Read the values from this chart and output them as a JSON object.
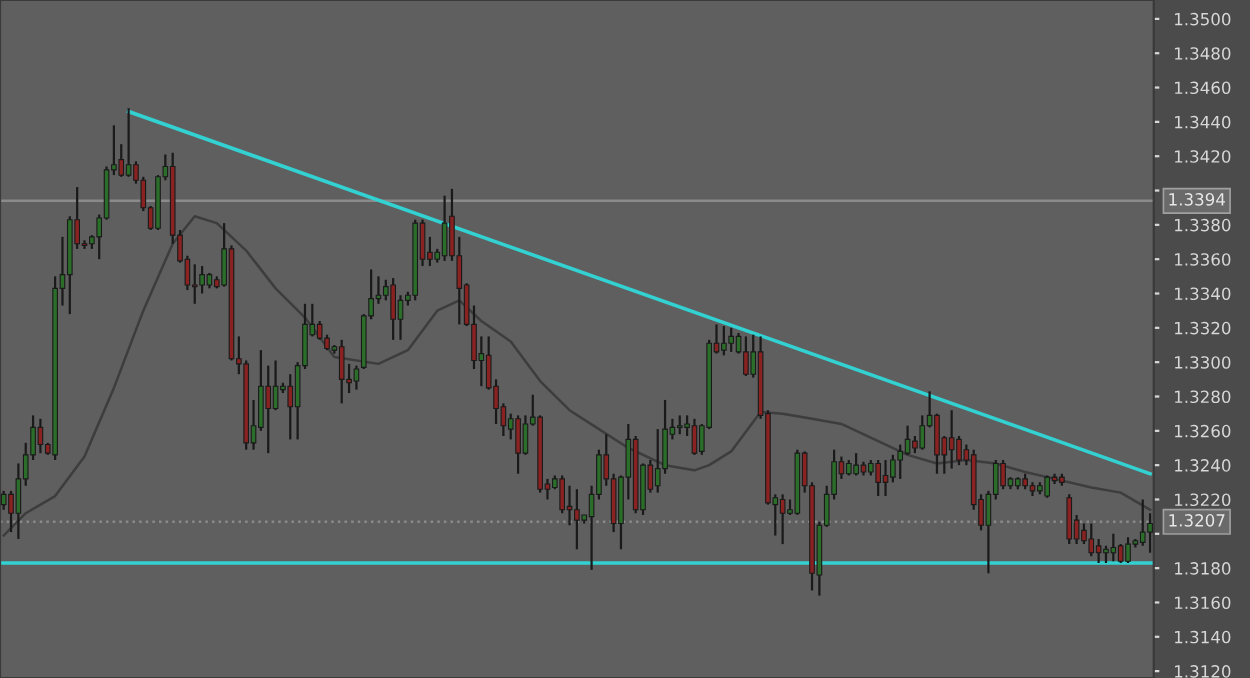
{
  "chart_data": {
    "type": "candlestick",
    "categories": [
      null,
      null,
      null,
      null,
      null,
      null,
      null,
      null,
      null,
      null,
      null,
      null,
      null,
      null,
      null,
      null,
      null,
      null,
      null,
      null,
      null,
      null,
      null,
      null,
      null,
      null,
      null,
      null,
      null,
      null,
      null,
      null,
      null,
      null,
      null,
      null,
      null,
      null,
      null,
      null,
      null,
      null,
      null,
      null,
      null,
      null,
      null,
      null,
      null,
      null,
      null,
      null,
      null,
      null,
      null,
      null,
      null,
      null,
      null,
      null,
      null,
      null,
      null,
      null,
      null,
      null,
      null,
      null,
      null,
      null,
      null,
      null,
      null,
      null,
      null,
      null,
      null,
      null,
      null,
      null,
      null,
      null,
      null,
      null,
      null,
      null,
      null,
      null,
      null,
      null,
      null,
      null,
      null,
      null,
      null,
      null,
      null,
      null,
      null,
      null,
      null,
      null,
      null,
      null,
      null,
      null,
      null,
      null,
      null,
      null,
      null,
      null,
      null,
      null,
      null,
      null,
      null,
      null,
      null,
      null,
      null,
      null,
      null,
      null,
      null,
      null,
      null,
      null,
      null,
      null,
      null,
      null,
      null,
      null,
      null,
      null,
      null,
      null,
      null,
      null,
      null,
      null,
      null,
      null,
      null,
      null,
      null,
      null,
      null,
      null,
      null,
      null,
      null,
      null,
      null,
      null,
      null
    ],
    "ohlc": [
      [
        1.3217,
        1.3225,
        1.3214,
        1.3223
      ],
      [
        1.3223,
        1.3225,
        1.3201,
        1.3212
      ],
      [
        1.3212,
        1.3241,
        1.3197,
        1.3232
      ],
      [
        1.3232,
        1.3253,
        1.3228,
        1.3246
      ],
      [
        1.3246,
        1.3269,
        1.3243,
        1.3262
      ],
      [
        1.3262,
        1.3267,
        1.3247,
        1.3252
      ],
      [
        1.3252,
        1.3253,
        1.3246,
        1.3247
      ],
      [
        1.3246,
        1.335,
        1.3243,
        1.3343
      ],
      [
        1.3343,
        1.3373,
        1.3333,
        1.3351
      ],
      [
        1.3351,
        1.3385,
        1.3328,
        1.3383
      ],
      [
        1.3383,
        1.3402,
        1.3366,
        1.3369
      ],
      [
        1.3369,
        1.3371,
        1.3366,
        1.3368
      ],
      [
        1.3369,
        1.3374,
        1.3366,
        1.3373
      ],
      [
        1.3373,
        1.3386,
        1.336,
        1.3384
      ],
      [
        1.3384,
        1.3414,
        1.3383,
        1.3412
      ],
      [
        1.3412,
        1.3438,
        1.3409,
        1.3415
      ],
      [
        1.3418,
        1.3427,
        1.3408,
        1.3409
      ],
      [
        1.3409,
        1.3448,
        1.3408,
        1.3415
      ],
      [
        1.3415,
        1.3417,
        1.3404,
        1.3406
      ],
      [
        1.3406,
        1.3408,
        1.3388,
        1.339
      ],
      [
        1.339,
        1.3391,
        1.3377,
        1.3378
      ],
      [
        1.3378,
        1.3409,
        1.3377,
        1.3408
      ],
      [
        1.3408,
        1.3421,
        1.3406,
        1.3414
      ],
      [
        1.3414,
        1.3422,
        1.3369,
        1.3374
      ],
      [
        1.3374,
        1.3377,
        1.3358,
        1.3359
      ],
      [
        1.336,
        1.3362,
        1.3342,
        1.3345
      ],
      [
        1.3345,
        1.3357,
        1.3334,
        1.3344
      ],
      [
        1.3345,
        1.3356,
        1.334,
        1.3351
      ],
      [
        1.3345,
        1.3352,
        1.3343,
        1.3351
      ],
      [
        1.3348,
        1.335,
        1.3343,
        1.3344
      ],
      [
        1.3345,
        1.3381,
        1.3344,
        1.3366
      ],
      [
        1.3366,
        1.3368,
        1.3301,
        1.3302
      ],
      [
        1.3302,
        1.3315,
        1.3293,
        1.3299
      ],
      [
        1.3299,
        1.3301,
        1.3249,
        1.3253
      ],
      [
        1.3253,
        1.3278,
        1.3249,
        1.3263
      ],
      [
        1.3262,
        1.3307,
        1.326,
        1.3286
      ],
      [
        1.3286,
        1.3298,
        1.3247,
        1.3273
      ],
      [
        1.3273,
        1.3301,
        1.3272,
        1.3286
      ],
      [
        1.3284,
        1.3288,
        1.3282,
        1.3286
      ],
      [
        1.3286,
        1.3293,
        1.3255,
        1.3274
      ],
      [
        1.3274,
        1.33,
        1.3255,
        1.3298
      ],
      [
        1.3298,
        1.3334,
        1.3296,
        1.3322
      ],
      [
        1.3316,
        1.3334,
        1.3315,
        1.3322
      ],
      [
        1.3322,
        1.3324,
        1.3313,
        1.3314
      ],
      [
        1.3314,
        1.3316,
        1.3307,
        1.3308
      ],
      [
        1.3307,
        1.331,
        1.3305,
        1.3309
      ],
      [
        1.3309,
        1.3313,
        1.3276,
        1.329
      ],
      [
        1.329,
        1.3299,
        1.3282,
        1.3288
      ],
      [
        1.3289,
        1.3298,
        1.3284,
        1.3296
      ],
      [
        1.3297,
        1.3328,
        1.3296,
        1.3327
      ],
      [
        1.3327,
        1.3354,
        1.3325,
        1.3337
      ],
      [
        1.3337,
        1.335,
        1.3334,
        1.3339
      ],
      [
        1.3339,
        1.3348,
        1.3336,
        1.3344
      ],
      [
        1.3345,
        1.3349,
        1.3313,
        1.3325
      ],
      [
        1.3325,
        1.3339,
        1.3313,
        1.3336
      ],
      [
        1.3336,
        1.3341,
        1.3333,
        1.3339
      ],
      [
        1.3339,
        1.3383,
        1.3336,
        1.3381
      ],
      [
        1.3381,
        1.3383,
        1.3356,
        1.336
      ],
      [
        1.3364,
        1.3373,
        1.3356,
        1.336
      ],
      [
        1.336,
        1.3366,
        1.3358,
        1.3364
      ],
      [
        1.3362,
        1.3397,
        1.3359,
        1.3381
      ],
      [
        1.3385,
        1.3401,
        1.3359,
        1.3362
      ],
      [
        1.3362,
        1.3373,
        1.3322,
        1.3343
      ],
      [
        1.3345,
        1.3346,
        1.3321,
        1.3322
      ],
      [
        1.3322,
        1.3333,
        1.3296,
        1.3301
      ],
      [
        1.3301,
        1.3315,
        1.3286,
        1.3305
      ],
      [
        1.3304,
        1.3315,
        1.3284,
        1.3285
      ],
      [
        1.3286,
        1.329,
        1.3264,
        1.3273
      ],
      [
        1.3274,
        1.3276,
        1.3257,
        1.3263
      ],
      [
        1.3261,
        1.327,
        1.3255,
        1.3267
      ],
      [
        1.3267,
        1.3269,
        1.3235,
        1.3247
      ],
      [
        1.3247,
        1.3269,
        1.3246,
        1.3264
      ],
      [
        1.3264,
        1.3281,
        1.3263,
        1.3268
      ],
      [
        1.3268,
        1.3269,
        1.3224,
        1.3226
      ],
      [
        1.3229,
        1.3232,
        1.322,
        1.3226
      ],
      [
        1.3227,
        1.3234,
        1.3226,
        1.3232
      ],
      [
        1.3232,
        1.3234,
        1.3212,
        1.3214
      ],
      [
        1.3216,
        1.3228,
        1.3205,
        1.3214
      ],
      [
        1.3214,
        1.3226,
        1.3191,
        1.3208
      ],
      [
        1.3208,
        1.3211,
        1.3206,
        1.3211
      ],
      [
        1.321,
        1.3228,
        1.3179,
        1.3223
      ],
      [
        1.3223,
        1.3249,
        1.322,
        1.3246
      ],
      [
        1.3246,
        1.3258,
        1.3228,
        1.3232
      ],
      [
        1.3232,
        1.3235,
        1.3201,
        1.3206
      ],
      [
        1.3206,
        1.3234,
        1.3191,
        1.3233
      ],
      [
        1.3233,
        1.3264,
        1.322,
        1.3255
      ],
      [
        1.3255,
        1.3257,
        1.3212,
        1.3214
      ],
      [
        1.3214,
        1.3241,
        1.3211,
        1.324
      ],
      [
        1.324,
        1.3243,
        1.3224,
        1.3226
      ],
      [
        1.3228,
        1.3261,
        1.3224,
        1.3238
      ],
      [
        1.3238,
        1.3278,
        1.3235,
        1.3261
      ],
      [
        1.3258,
        1.3267,
        1.3255,
        1.3262
      ],
      [
        1.3262,
        1.3269,
        1.3258,
        1.3263
      ],
      [
        1.3262,
        1.3269,
        1.3257,
        1.3264
      ],
      [
        1.3263,
        1.3267,
        1.3246,
        1.3247
      ],
      [
        1.3248,
        1.3264,
        1.3246,
        1.3263
      ],
      [
        1.3262,
        1.3313,
        1.3261,
        1.3311
      ],
      [
        1.3311,
        1.3322,
        1.3305,
        1.3306
      ],
      [
        1.3307,
        1.3321,
        1.3304,
        1.3311
      ],
      [
        1.3311,
        1.332,
        1.3306,
        1.3315
      ],
      [
        1.3306,
        1.3317,
        1.3305,
        1.3315
      ],
      [
        1.3306,
        1.3315,
        1.3292,
        1.3293
      ],
      [
        1.3293,
        1.3316,
        1.3291,
        1.3306
      ],
      [
        1.3306,
        1.3315,
        1.3267,
        1.3269
      ],
      [
        1.327,
        1.3272,
        1.3217,
        1.3218
      ],
      [
        1.3217,
        1.3223,
        1.3199,
        1.3221
      ],
      [
        1.322,
        1.3223,
        1.3194,
        1.3212
      ],
      [
        1.3212,
        1.322,
        1.3211,
        1.3214
      ],
      [
        1.3212,
        1.3249,
        1.3211,
        1.3247
      ],
      [
        1.3247,
        1.3248,
        1.3224,
        1.3228
      ],
      [
        1.3228,
        1.323,
        1.3167,
        1.3177
      ],
      [
        1.3176,
        1.3207,
        1.3164,
        1.3205
      ],
      [
        1.3205,
        1.3228,
        1.3204,
        1.3223
      ],
      [
        1.3223,
        1.3249,
        1.322,
        1.3242
      ],
      [
        1.3242,
        1.3245,
        1.3232,
        1.3235
      ],
      [
        1.3235,
        1.3243,
        1.3234,
        1.3241
      ],
      [
        1.3235,
        1.3247,
        1.3234,
        1.324
      ],
      [
        1.324,
        1.3242,
        1.3234,
        1.3236
      ],
      [
        1.3236,
        1.3243,
        1.3234,
        1.3241
      ],
      [
        1.3241,
        1.3243,
        1.3222,
        1.323
      ],
      [
        1.3234,
        1.3243,
        1.3222,
        1.323
      ],
      [
        1.3233,
        1.3246,
        1.323,
        1.3243
      ],
      [
        1.3243,
        1.3252,
        1.3232,
        1.3248
      ],
      [
        1.3247,
        1.3263,
        1.3246,
        1.3255
      ],
      [
        1.3254,
        1.3257,
        1.3247,
        1.325
      ],
      [
        1.325,
        1.3269,
        1.3249,
        1.3263
      ],
      [
        1.3263,
        1.3283,
        1.3262,
        1.3269
      ],
      [
        1.3269,
        1.327,
        1.3235,
        1.3246
      ],
      [
        1.3256,
        1.3257,
        1.3235,
        1.3246
      ],
      [
        1.3256,
        1.3272,
        1.3238,
        1.3249
      ],
      [
        1.3255,
        1.3257,
        1.324,
        1.3243
      ],
      [
        1.3249,
        1.3252,
        1.324,
        1.3243
      ],
      [
        1.3246,
        1.3249,
        1.3214,
        1.3217
      ],
      [
        1.322,
        1.3223,
        1.3202,
        1.3205
      ],
      [
        1.3205,
        1.3225,
        1.3177,
        1.3223
      ],
      [
        1.3223,
        1.3243,
        1.322,
        1.3241
      ],
      [
        1.3241,
        1.3243,
        1.3226,
        1.3228
      ],
      [
        1.3228,
        1.3233,
        1.3226,
        1.3232
      ],
      [
        1.3228,
        1.3233,
        1.3226,
        1.3232
      ],
      [
        1.3232,
        1.3235,
        1.3226,
        1.3228
      ],
      [
        1.3228,
        1.323,
        1.3222,
        1.3225
      ],
      [
        1.3225,
        1.323,
        1.3223,
        1.3228
      ],
      [
        1.3222,
        1.3234,
        1.3221,
        1.3233
      ],
      [
        1.3233,
        1.3235,
        1.3229,
        1.3231
      ],
      [
        1.3233,
        1.3235,
        1.3228,
        1.323
      ],
      [
        1.3221,
        1.3223,
        1.3194,
        1.3197
      ],
      [
        1.3208,
        1.3211,
        1.3194,
        1.3197
      ],
      [
        1.3202,
        1.3206,
        1.3194,
        1.3196
      ],
      [
        1.3197,
        1.3206,
        1.3187,
        1.3189
      ],
      [
        1.3193,
        1.3197,
        1.3183,
        1.3189
      ],
      [
        1.3189,
        1.3193,
        1.3183,
        1.3191
      ],
      [
        1.3189,
        1.32,
        1.3184,
        1.3192
      ],
      [
        1.3193,
        1.3194,
        1.3183,
        1.3184
      ],
      [
        1.3184,
        1.3198,
        1.3183,
        1.3194
      ],
      [
        1.3194,
        1.3197,
        1.3192,
        1.3196
      ],
      [
        1.3195,
        1.322,
        1.3193,
        1.3201
      ],
      [
        1.3201,
        1.3212,
        1.3189,
        1.3206
      ]
    ],
    "colors": [
      "#2a6e2a",
      "#8a2222",
      "#2a6e2a",
      "#2a6e2a",
      "#2a6e2a",
      "#8a2222",
      "#8a2222",
      "#2a6e2a",
      "#2a6e2a",
      "#2a6e2a",
      "#8a2222",
      "#8a2222",
      "#2a6e2a",
      "#2a6e2a",
      "#2a6e2a",
      "#2a6e2a",
      "#8a2222",
      "#2a6e2a",
      "#8a2222",
      "#8a2222",
      "#8a2222",
      "#2a6e2a",
      "#2a6e2a",
      "#8a2222",
      "#8a2222",
      "#8a2222",
      "#8a2222",
      "#2a6e2a",
      "#2a6e2a",
      "#8a2222",
      "#2a6e2a",
      "#8a2222",
      "#8a2222",
      "#8a2222",
      "#2a6e2a",
      "#2a6e2a",
      "#8a2222",
      "#2a6e2a",
      "#2a6e2a",
      "#8a2222",
      "#2a6e2a",
      "#2a6e2a",
      "#2a6e2a",
      "#8a2222",
      "#8a2222",
      "#2a6e2a",
      "#8a2222",
      "#8a2222",
      "#2a6e2a",
      "#2a6e2a",
      "#2a6e2a",
      "#2a6e2a",
      "#2a6e2a",
      "#8a2222",
      "#2a6e2a",
      "#2a6e2a",
      "#2a6e2a",
      "#8a2222",
      "#8a2222",
      "#2a6e2a",
      "#2a6e2a",
      "#8a2222",
      "#8a2222",
      "#8a2222",
      "#8a2222",
      "#2a6e2a",
      "#8a2222",
      "#8a2222",
      "#8a2222",
      "#2a6e2a",
      "#8a2222",
      "#2a6e2a",
      "#2a6e2a",
      "#8a2222",
      "#8a2222",
      "#2a6e2a",
      "#8a2222",
      "#8a2222",
      "#8a2222",
      "#2a6e2a",
      "#2a6e2a",
      "#2a6e2a",
      "#8a2222",
      "#8a2222",
      "#2a6e2a",
      "#2a6e2a",
      "#8a2222",
      "#2a6e2a",
      "#8a2222",
      "#2a6e2a",
      "#2a6e2a",
      "#2a6e2a",
      "#2a6e2a",
      "#2a6e2a",
      "#8a2222",
      "#2a6e2a",
      "#2a6e2a",
      "#8a2222",
      "#2a6e2a",
      "#2a6e2a",
      "#2a6e2a",
      "#8a2222",
      "#2a6e2a",
      "#8a2222",
      "#8a2222",
      "#2a6e2a",
      "#8a2222",
      "#2a6e2a",
      "#2a6e2a",
      "#8a2222",
      "#8a2222",
      "#2a6e2a",
      "#2a6e2a",
      "#2a6e2a",
      "#8a2222",
      "#2a6e2a",
      "#2a6e2a",
      "#8a2222",
      "#2a6e2a",
      "#8a2222",
      "#8a2222",
      "#2a6e2a",
      "#2a6e2a",
      "#2a6e2a",
      "#8a2222",
      "#2a6e2a",
      "#2a6e2a",
      "#8a2222",
      "#8a2222",
      "#8a2222",
      "#8a2222",
      "#8a2222",
      "#8a2222",
      "#8a2222",
      "#2a6e2a",
      "#2a6e2a",
      "#8a2222",
      "#2a6e2a",
      "#2a6e2a",
      "#8a2222",
      "#8a2222",
      "#2a6e2a",
      "#2a6e2a",
      "#8a2222",
      "#8a2222",
      "#8a2222",
      "#8a2222",
      "#8a2222",
      "#8a2222",
      "#8a2222",
      "#2a6e2a",
      "#2a6e2a",
      "#8a2222",
      "#2a6e2a",
      "#2a6e2a",
      "#2a6e2a",
      "#2a6e2a"
    ],
    "series": [
      {
        "type": "line",
        "color": "#3d3d3d",
        "values": [
          1.3199,
          null,
          null,
          1.3212,
          null,
          null,
          null,
          1.3222,
          null,
          null,
          null,
          1.3245,
          null,
          null,
          null,
          1.3285,
          null,
          null,
          null,
          1.333,
          null,
          null,
          null,
          1.3369,
          null,
          null,
          1.3385,
          null,
          null,
          1.3381,
          null,
          null,
          null,
          1.3365,
          null,
          null,
          null,
          1.3343,
          null,
          null,
          null,
          1.3326,
          null,
          null,
          null,
          1.3303,
          null,
          null,
          null,
          null,
          null,
          1.3299,
          null,
          null,
          null,
          1.3307,
          null,
          null,
          null,
          1.333,
          null,
          null,
          1.3336,
          null,
          null,
          1.3324,
          null,
          null,
          null,
          1.3312,
          null,
          null,
          null,
          1.3289,
          null,
          null,
          null,
          1.3272,
          null,
          null,
          null,
          1.3261,
          null,
          null,
          null,
          1.325,
          null,
          null,
          null,
          null,
          1.324,
          null,
          null,
          null,
          1.3237,
          null,
          1.324,
          null,
          null,
          1.3248,
          null,
          null,
          null,
          1.3271,
          null,
          null,
          1.327,
          null,
          null,
          null,
          1.3267,
          null,
          null,
          null,
          1.3264,
          null,
          null,
          null,
          null,
          1.3254,
          null,
          null,
          null,
          1.3246,
          null,
          null,
          null,
          1.3241,
          null,
          null,
          null,
          1.3243,
          null,
          null,
          null,
          1.3241,
          null,
          null,
          null,
          1.3236,
          null,
          null,
          null,
          1.3232,
          null,
          null,
          null,
          null,
          1.3227,
          null,
          null,
          null,
          1.3224,
          null,
          null,
          null,
          1.3214
        ]
      },
      {
        "type": "line",
        "color": "#33d1d1",
        "values": [
          null,
          null,
          null,
          null,
          null,
          null,
          null,
          null,
          null,
          null,
          null,
          null,
          null,
          null,
          null,
          null,
          null,
          1.3446,
          null,
          null,
          null,
          null,
          null,
          null,
          null,
          null,
          null,
          null,
          null,
          null,
          null,
          null,
          null,
          null,
          null,
          null,
          null,
          null,
          null,
          null,
          null,
          null,
          null,
          null,
          null,
          null,
          null,
          null,
          null,
          null,
          null,
          null,
          null,
          null,
          null,
          null,
          null,
          null,
          null,
          null,
          null,
          null,
          null,
          null,
          null,
          null,
          null,
          null,
          null,
          null,
          null,
          null,
          null,
          null,
          null,
          null,
          null,
          null,
          null,
          null,
          null,
          null,
          null,
          null,
          null,
          null,
          null,
          null,
          null,
          null,
          null,
          null,
          null,
          null,
          null,
          null,
          null,
          null,
          null,
          null,
          null,
          null,
          null,
          null,
          null,
          null,
          null,
          null,
          null,
          null,
          null,
          null,
          null,
          null,
          null,
          null,
          null,
          null,
          null,
          null,
          null,
          null,
          null,
          null,
          null,
          null,
          null,
          null,
          null,
          null,
          null,
          null,
          null,
          null,
          null,
          null,
          null,
          null,
          null,
          null,
          null,
          null,
          null,
          null,
          null,
          null,
          null,
          null,
          null,
          null,
          null,
          null,
          null,
          null,
          null,
          null,
          1.3235
        ]
      }
    ],
    "ylim": [
      1.3116,
      1.3511
    ],
    "yticks": [
      {
        "value": 1.312,
        "label": "1.3120"
      },
      {
        "value": 1.314,
        "label": "1.3140"
      },
      {
        "value": 1.316,
        "label": "1.3160"
      },
      {
        "value": 1.318,
        "label": "1.3180"
      },
      {
        "value": 1.32,
        "label": null
      },
      {
        "value": 1.322,
        "label": "1.3220"
      },
      {
        "value": 1.324,
        "label": "1.3240"
      },
      {
        "value": 1.326,
        "label": "1.3260"
      },
      {
        "value": 1.328,
        "label": "1.3280"
      },
      {
        "value": 1.33,
        "label": "1.3300"
      },
      {
        "value": 1.332,
        "label": "1.3320"
      },
      {
        "value": 1.334,
        "label": "1.3340"
      },
      {
        "value": 1.336,
        "label": "1.3360"
      },
      {
        "value": 1.338,
        "label": "1.3380"
      },
      {
        "value": 1.34,
        "label": null
      },
      {
        "value": 1.342,
        "label": "1.3420"
      },
      {
        "value": 1.344,
        "label": "1.3440"
      },
      {
        "value": 1.346,
        "label": "1.3460"
      },
      {
        "value": 1.348,
        "label": "1.3480"
      },
      {
        "value": 1.35,
        "label": "1.3500"
      }
    ],
    "tick_labels": "y",
    "ref_lines": [
      {
        "axis": "y",
        "value": 1.3394,
        "label": "1.3394",
        "color": "#8a8a8a",
        "line_style": "solid"
      },
      {
        "axis": "y",
        "value": 1.3207,
        "label": "1.3207",
        "color": "#8a8a8a",
        "line_style": "dotted"
      },
      {
        "axis": "y",
        "value": 1.3183,
        "label": null,
        "color": "#33d1d1",
        "line_style": "solid"
      }
    ],
    "grid": false,
    "legend": false
  }
}
